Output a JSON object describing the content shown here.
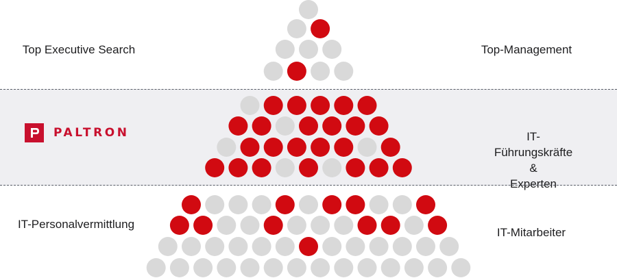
{
  "colors": {
    "red": "#d10a11",
    "grey": "#d9d9d9",
    "band": "#efeff2",
    "text": "#1d1d1f",
    "brand": "#c8102e"
  },
  "logo": {
    "text": "PALTRON",
    "icon": "paltron-p-logo-icon"
  },
  "tiers": [
    {
      "left_label": "Top Executive Search",
      "right_label": "Top-Management",
      "rows": [
        "g",
        "gr",
        "ggg",
        "grgg"
      ]
    },
    {
      "left_label": "",
      "right_label": "IT-Führungskräfte &\nExperten",
      "rows": [
        "grrrrr",
        "rrgrrrr",
        "grrrrrgr",
        "rrrgrgrrr"
      ]
    },
    {
      "left_label": "IT-Personalvermittlung",
      "right_label": "IT-Mitarbeiter",
      "rows": [
        "rgggrgrrggr",
        "rrggrgggrrgr",
        "ggggggrgggggg",
        "gggggggggggggg"
      ]
    }
  ]
}
